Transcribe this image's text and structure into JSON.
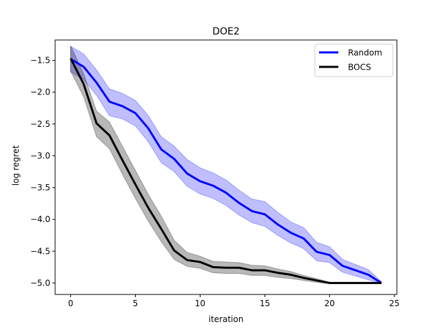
{
  "chart_data": {
    "type": "line",
    "title": "DOE2",
    "xlabel": "iteration",
    "ylabel": "log regret",
    "xlim": [
      -1.2,
      25.2
    ],
    "ylim": [
      -5.18,
      -1.18
    ],
    "xticks": [
      0,
      5,
      10,
      15,
      20,
      25
    ],
    "xtick_labels": [
      "0",
      "5",
      "10",
      "15",
      "20",
      "25"
    ],
    "yticks": [
      -1.5,
      -2.0,
      -2.5,
      -3.0,
      -3.5,
      -4.0,
      -4.5,
      -5.0
    ],
    "ytick_labels": [
      "−1.5",
      "−2.0",
      "−2.5",
      "−3.0",
      "−3.5",
      "−4.0",
      "−4.5",
      "−5.0"
    ],
    "grid": false,
    "legend": "top-right",
    "x": [
      0,
      1,
      2,
      3,
      4,
      5,
      6,
      7,
      8,
      9,
      10,
      11,
      12,
      13,
      14,
      15,
      16,
      17,
      18,
      19,
      20,
      21,
      22,
      23,
      24
    ],
    "series": [
      {
        "name": "Random",
        "color": "#0000ff",
        "values": [
          -1.48,
          -1.6,
          -1.85,
          -2.15,
          -2.22,
          -2.33,
          -2.57,
          -2.9,
          -3.05,
          -3.28,
          -3.4,
          -3.47,
          -3.58,
          -3.74,
          -3.87,
          -3.92,
          -4.08,
          -4.21,
          -4.3,
          -4.51,
          -4.56,
          -4.73,
          -4.8,
          -4.87,
          -5.0
        ],
        "band_upper": [
          -1.28,
          -1.4,
          -1.65,
          -1.95,
          -2.02,
          -2.13,
          -2.37,
          -2.7,
          -2.85,
          -3.06,
          -3.19,
          -3.27,
          -3.38,
          -3.54,
          -3.68,
          -3.72,
          -3.89,
          -4.04,
          -4.13,
          -4.36,
          -4.43,
          -4.63,
          -4.71,
          -4.79,
          -4.98
        ],
        "band_lower": [
          -1.68,
          -1.8,
          -2.05,
          -2.37,
          -2.42,
          -2.53,
          -2.78,
          -3.11,
          -3.25,
          -3.48,
          -3.6,
          -3.67,
          -3.78,
          -3.93,
          -4.05,
          -4.11,
          -4.25,
          -4.37,
          -4.46,
          -4.65,
          -4.68,
          -4.83,
          -4.89,
          -4.95,
          -5.01
        ]
      },
      {
        "name": "BOCS",
        "color": "#000000",
        "values": [
          -1.47,
          -1.87,
          -2.49,
          -2.68,
          -3.07,
          -3.45,
          -3.82,
          -4.15,
          -4.49,
          -4.64,
          -4.67,
          -4.75,
          -4.76,
          -4.76,
          -4.8,
          -4.8,
          -4.84,
          -4.87,
          -4.92,
          -4.96,
          -5.0,
          -5.0,
          -5.0,
          -5.0,
          -5.0
        ],
        "band_upper": [
          -1.27,
          -1.71,
          -2.3,
          -2.47,
          -2.85,
          -3.23,
          -3.61,
          -3.95,
          -4.33,
          -4.52,
          -4.58,
          -4.66,
          -4.67,
          -4.68,
          -4.72,
          -4.73,
          -4.78,
          -4.82,
          -4.88,
          -4.93,
          -4.99,
          -4.99,
          -4.99,
          -4.99,
          -5.0
        ],
        "band_lower": [
          -1.67,
          -2.07,
          -2.7,
          -2.89,
          -3.29,
          -3.67,
          -4.03,
          -4.35,
          -4.63,
          -4.74,
          -4.77,
          -4.84,
          -4.85,
          -4.85,
          -4.88,
          -4.88,
          -4.91,
          -4.93,
          -4.96,
          -4.99,
          -5.01,
          -5.01,
          -5.01,
          -5.01,
          -5.0
        ]
      }
    ]
  }
}
